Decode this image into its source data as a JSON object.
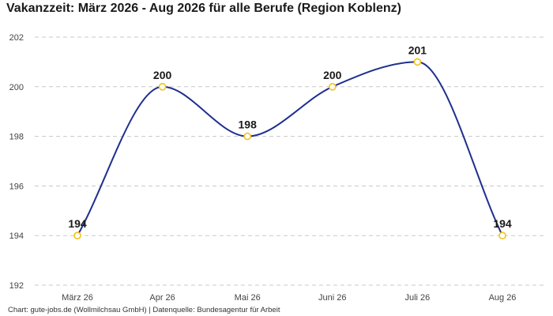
{
  "title": "Vakanzzeit: März 2026 - Aug 2026 für alle Berufe (Region Koblenz)",
  "footer": "Chart: gute-jobs.de (Wollmilchsau GmbH) | Datenquelle: Bundesagentur für Arbeit",
  "colors": {
    "line": "#1f2f8f",
    "point": "#f2c21b",
    "grid": "#c8c8c8"
  },
  "chart_data": {
    "type": "line",
    "categories": [
      "März 26",
      "Apr 26",
      "Mai 26",
      "Juni 26",
      "Juli 26",
      "Aug 26"
    ],
    "values": [
      194,
      200,
      198,
      200,
      201,
      194
    ],
    "data_labels": [
      "194",
      "200",
      "198",
      "200",
      "201",
      "194"
    ],
    "ylim": [
      192,
      202
    ],
    "yticks": [
      192,
      194,
      196,
      198,
      200,
      202
    ],
    "grid": true,
    "smooth": true,
    "legend": "none"
  }
}
